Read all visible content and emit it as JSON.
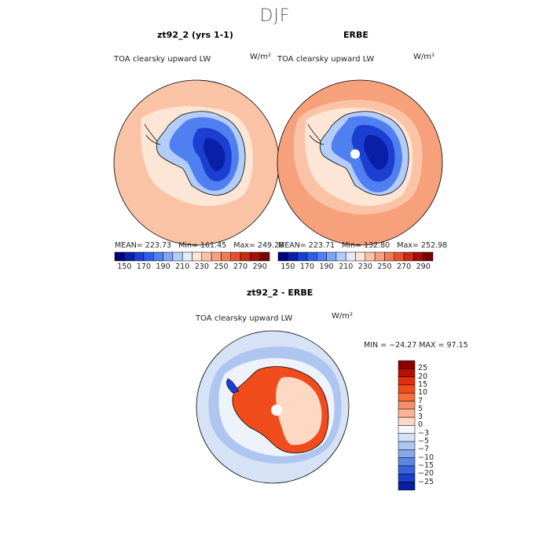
{
  "figure": {
    "title": "DJF"
  },
  "panels": [
    {
      "title": "zt92_2 (yrs 1-1)",
      "variable": "TOA clearsky upward LW",
      "units": "W/m²",
      "stats": {
        "mean_label": "MEAN=",
        "mean": "223.73",
        "min_label": "Min=",
        "min": "161.45",
        "max_label": "Max=",
        "max": "249.28"
      }
    },
    {
      "title": "ERBE",
      "variable": "TOA clearsky upward LW",
      "units": "W/m²",
      "stats": {
        "mean_label": "MEAN=",
        "mean": "223.71",
        "min_label": "Min=",
        "min": "132.80",
        "max_label": "Max=",
        "max": "252.98"
      }
    },
    {
      "title": "zt92_2 - ERBE",
      "variable": "TOA clearsky upward LW",
      "units": "W/m²",
      "stats_text": "MIN = −24.27 MAX =   97.15"
    }
  ],
  "abs_colorbar": {
    "tick_labels": [
      "150",
      "170",
      "190",
      "210",
      "230",
      "250",
      "270",
      "290"
    ],
    "colors": [
      "#000080",
      "#0a1fa8",
      "#1b3fd0",
      "#2e5ee8",
      "#4f7ff0",
      "#7ea6f4",
      "#b3ccf8",
      "#e0ecfb",
      "#fde6d6",
      "#fbc3a6",
      "#f7a07c",
      "#f27a54",
      "#e6502e",
      "#cc2a14",
      "#a30f08",
      "#7a0000"
    ]
  },
  "diff_colorbar": {
    "tick_labels": [
      "25",
      "20",
      "15",
      "10",
      "7",
      "5",
      "3",
      "0",
      "−3",
      "−5",
      "−7",
      "−10",
      "−15",
      "−20",
      "−25"
    ],
    "colors": [
      "#8a0000",
      "#b81004",
      "#e0300e",
      "#f04c1c",
      "#f46e3c",
      "#f79066",
      "#fab594",
      "#fdd9c4",
      "#f6f8fc",
      "#d6e2f6",
      "#aec6ef",
      "#87a8ea",
      "#5d86e4",
      "#3464dc",
      "#1a3fca",
      "#071fa0"
    ]
  },
  "map_colors": {
    "ocean_warm": "#fbc3a6",
    "ocean_warmer": "#f7a07c",
    "coast_pale": "#fde6d6",
    "ice_light": "#b3ccf8",
    "ice_mid": "#4f7ff0",
    "ice_deep": "#1b3fd0",
    "ice_deepest": "#0a1fa8",
    "diff_ocean": "#d6e2f6",
    "diff_ocean_blue": "#aec6ef",
    "diff_land_red": "#f04c1c",
    "diff_land_pale": "#fdd9c4"
  }
}
